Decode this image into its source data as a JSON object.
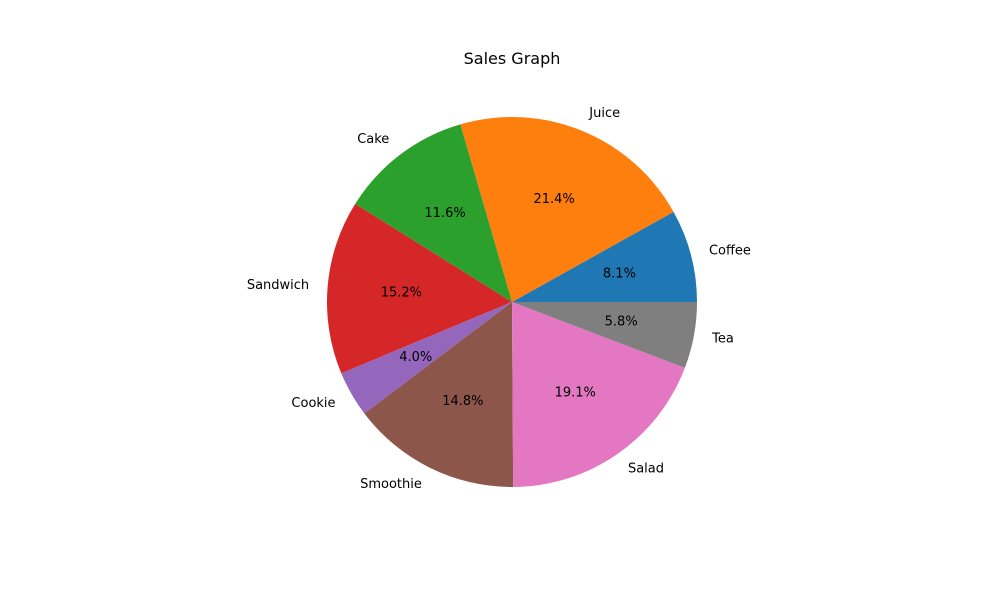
{
  "chart_data": {
    "type": "pie",
    "title": "Sales Graph",
    "categories": [
      "Coffee",
      "Juice",
      "Cake",
      "Sandwich",
      "Cookie",
      "Smoothie",
      "Salad",
      "Tea"
    ],
    "values": [
      8.1,
      21.4,
      11.6,
      15.2,
      4.0,
      14.8,
      19.1,
      5.8
    ],
    "value_labels": [
      "8.1%",
      "21.4%",
      "11.6%",
      "15.2%",
      "4.0%",
      "14.8%",
      "19.1%",
      "5.8%"
    ],
    "colors": [
      "#1f77b4",
      "#ff7f0e",
      "#2ca02c",
      "#d62728",
      "#9467bd",
      "#8c564b",
      "#e377c2",
      "#7f7f7f"
    ],
    "start_angle_deg": 0,
    "direction": "counterclockwise",
    "legend": "none"
  }
}
